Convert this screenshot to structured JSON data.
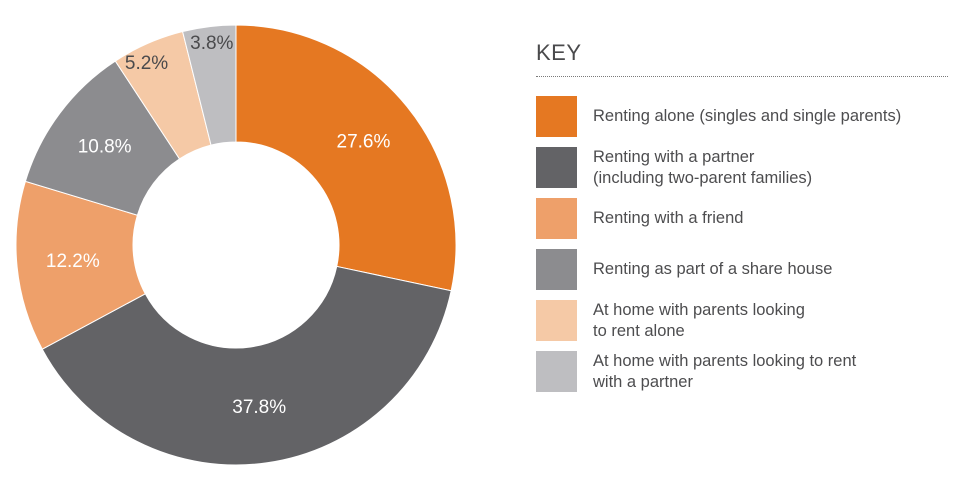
{
  "chart_data": {
    "type": "pie",
    "variant": "donut",
    "unit": "%",
    "slices": [
      {
        "label": "Renting alone (singles and single parents)",
        "value": 27.6,
        "display": "27.6%",
        "color": "#e57822"
      },
      {
        "label": "Renting with a partner\n(including two-parent families)",
        "value": 37.8,
        "display": "37.8%",
        "color": "#636366"
      },
      {
        "label": "Renting with a friend",
        "value": 12.2,
        "display": "12.2%",
        "color": "#eea06a"
      },
      {
        "label": "Renting as part of a share house",
        "value": 10.8,
        "display": "10.8%",
        "color": "#8c8c8f"
      },
      {
        "label": "At home with parents looking\nto rent alone",
        "value": 5.2,
        "display": "5.2%",
        "color": "#f5c9a6"
      },
      {
        "label": "At home with parents looking to rent\nwith a partner",
        "value": 3.8,
        "display": "3.8%",
        "color": "#bebec1"
      }
    ],
    "legend": {
      "title": "KEY",
      "position": "right"
    }
  }
}
